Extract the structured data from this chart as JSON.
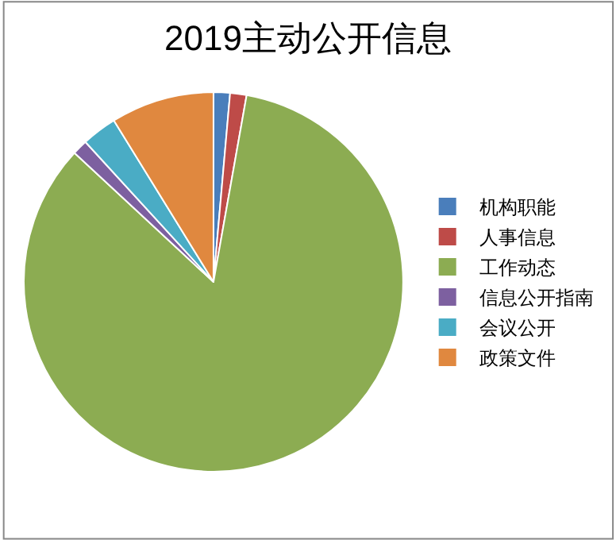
{
  "chart_data": {
    "type": "pie",
    "title": "2019主动公开信息",
    "categories": [
      "机构职能",
      "人事信息",
      "工作动态",
      "信息公开指南",
      "会议公开",
      "政策文件"
    ],
    "values": [
      1.4,
      1.4,
      84.1,
      1.3,
      3,
      8.8
    ],
    "colors": [
      "#4a7ebb",
      "#be4b48",
      "#8cac52",
      "#7d60a0",
      "#4aacc5",
      "#e0883f"
    ],
    "legend": "right"
  }
}
